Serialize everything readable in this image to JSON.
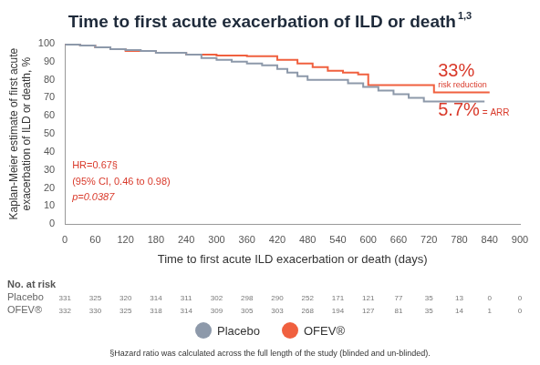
{
  "chart_data": {
    "type": "line",
    "title": "Time to first acute exacerbation of ILD or death",
    "title_note": "1,3",
    "x_label": "Time to first acute ILD exacerbation or death (days)",
    "y_label": [
      "Kaplan-Meier estimate of first acute",
      "exacerbation of ILD or death, %"
    ],
    "xlim": [
      0,
      900
    ],
    "xticks": [
      0,
      60,
      120,
      180,
      240,
      300,
      360,
      420,
      480,
      540,
      600,
      660,
      720,
      780,
      840,
      900
    ],
    "ylim": [
      0,
      100
    ],
    "yticks": [
      0,
      10,
      20,
      30,
      40,
      50,
      60,
      70,
      80,
      90,
      100
    ],
    "grid": false,
    "legend": "bottom",
    "series": [
      {
        "name": "Placebo",
        "color": "#8d99aa",
        "marker": "none",
        "line_style": "step",
        "x": [
          0,
          30,
          60,
          90,
          120,
          150,
          180,
          240,
          270,
          300,
          330,
          360,
          390,
          420,
          440,
          460,
          480,
          500,
          560,
          590,
          620,
          650,
          680,
          710,
          730,
          830
        ],
        "values": [
          100,
          99.5,
          99,
          98,
          97,
          96.5,
          96,
          95,
          94,
          92,
          91,
          90,
          89,
          88,
          86,
          84,
          82,
          80,
          80,
          78,
          76,
          74,
          72,
          70,
          68,
          68
        ]
      },
      {
        "name": "OFEV®",
        "color": "#f0603f",
        "marker": "none",
        "line_style": "step",
        "x": [
          0,
          30,
          60,
          90,
          120,
          180,
          240,
          300,
          360,
          420,
          460,
          490,
          520,
          550,
          580,
          600,
          730,
          740,
          840
        ],
        "values": [
          100,
          99.5,
          99,
          98,
          97,
          96,
          95,
          94,
          93.5,
          93,
          91,
          89,
          87,
          85,
          84,
          83,
          77,
          73,
          73
        ]
      }
    ],
    "annotations": {
      "risk_reduction": [
        "33%",
        "risk reduction"
      ],
      "arr": [
        "5.7%",
        "= ARR"
      ],
      "hazard_ratio": [
        "HR=0.67§",
        "(95% CI, 0.46 to 0.98)",
        "p=0.0387"
      ]
    },
    "risk_table": {
      "title": "No. at risk",
      "rows": [
        {
          "name": "Placebo",
          "values": [
            331,
            325,
            320,
            314,
            311,
            302,
            298,
            290,
            252,
            171,
            121,
            77,
            35,
            13,
            0,
            0
          ]
        },
        {
          "name": "OFEV®",
          "values": [
            332,
            330,
            325,
            318,
            314,
            309,
            305,
            303,
            268,
            194,
            127,
            81,
            35,
            14,
            1,
            0
          ]
        }
      ]
    },
    "footnote": "§Hazard ratio was calculated across the full length of the study (blinded and un-blinded)."
  }
}
